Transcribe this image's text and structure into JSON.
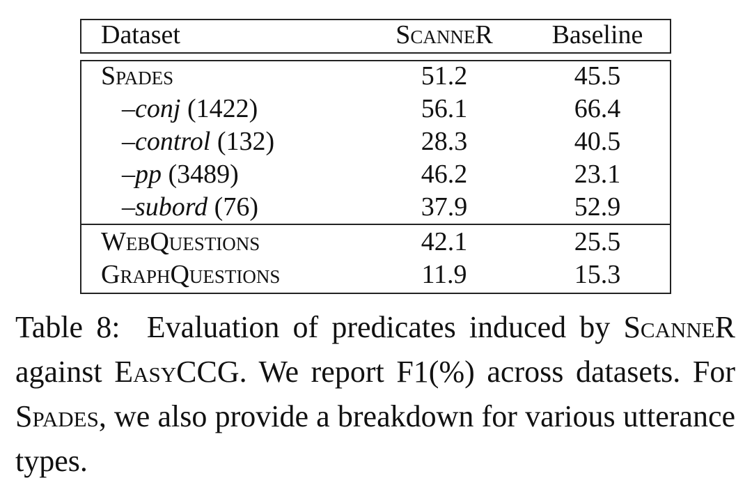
{
  "table": {
    "header": [
      "Dataset",
      "ScanneR",
      "Baseline"
    ],
    "rows": [
      {
        "label": [
          "Spades"
        ],
        "values": [
          51.2,
          45.5
        ]
      },
      {
        "label": [
          "–conj",
          "(1422)"
        ],
        "values": [
          56.1,
          66.4
        ]
      },
      {
        "label": [
          "–control",
          "(132)"
        ],
        "values": [
          28.3,
          40.5
        ]
      },
      {
        "label": [
          "–pp",
          "(3489)"
        ],
        "values": [
          46.2,
          23.1
        ]
      },
      {
        "label": [
          "–subord",
          "(76)"
        ],
        "values": [
          37.9,
          52.9
        ]
      },
      {
        "label": [
          "WebQuestions"
        ],
        "values": [
          42.1,
          25.5
        ]
      },
      {
        "label": [
          "GraphQuestions"
        ],
        "values": [
          11.9,
          15.3
        ]
      }
    ]
  },
  "caption": [
    "Table 8:",
    "Evaluation of predicates induced by",
    "ScanneR",
    "against",
    "EasyCCG",
    ". We report F1(%) across datasets. For",
    "Spades",
    ", we also provide a breakdown for various utterance types."
  ]
}
